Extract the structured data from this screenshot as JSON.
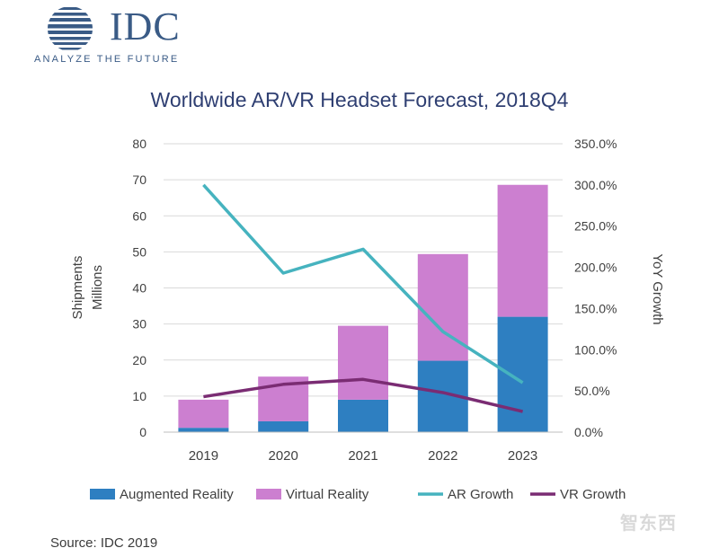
{
  "logo": {
    "wordmark": "IDC",
    "tagline": "ANALYZE THE FUTURE"
  },
  "source": "Source: IDC 2019",
  "watermark": "智东西",
  "colors": {
    "ar": "#2e7fc1",
    "vr": "#cc7fd0",
    "ar_growth": "#46b3bf",
    "vr_growth": "#7a2c73",
    "title": "#2f3f72",
    "logo": "#3a5b86"
  },
  "chart_data": {
    "type": "bar",
    "stacked": true,
    "title": "Worldwide AR/VR Headset Forecast, 2018Q4",
    "categories": [
      "2019",
      "2020",
      "2021",
      "2022",
      "2023"
    ],
    "ylabel_left": [
      "Shipments",
      "Millions"
    ],
    "ylabel_right": "YoY Growth",
    "ylim_left": [
      0,
      80
    ],
    "ylim_right": [
      0,
      350
    ],
    "yticks_left": [
      "0",
      "10",
      "20",
      "30",
      "40",
      "50",
      "60",
      "70",
      "80"
    ],
    "yticks_right": [
      "0.0%",
      "50.0%",
      "100.0%",
      "150.0%",
      "200.0%",
      "250.0%",
      "300.0%",
      "350.0%"
    ],
    "grid": true,
    "legend_position": "bottom",
    "series": [
      {
        "name": "Augmented Reality",
        "kind": "bar",
        "axis": "left",
        "values": [
          1.2,
          3.0,
          9.0,
          19.8,
          32.0
        ]
      },
      {
        "name": "Virtual Reality",
        "kind": "bar",
        "axis": "left",
        "values": [
          7.8,
          12.4,
          20.5,
          29.6,
          36.6
        ]
      },
      {
        "name": "AR Growth",
        "kind": "line",
        "axis": "right",
        "values": [
          300,
          193,
          222,
          122,
          60
        ]
      },
      {
        "name": "VR Growth",
        "kind": "line",
        "axis": "right",
        "values": [
          43,
          58,
          64,
          48,
          25
        ]
      }
    ]
  }
}
